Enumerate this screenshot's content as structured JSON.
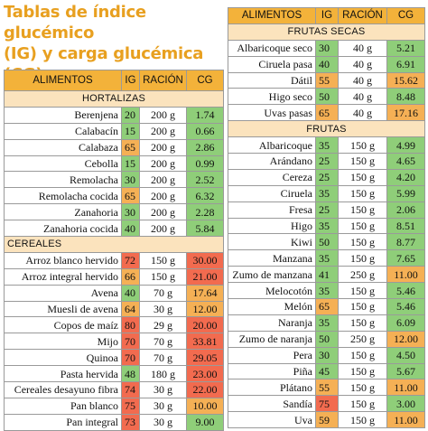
{
  "title_line1": "Tablas de índice glucémico",
  "title_line2": "(IG) y carga glucémica (CG)",
  "headers": {
    "food": "ALIMENTOS",
    "ig": "IG",
    "portion": "RACIÓN",
    "cg": "CG"
  },
  "colors": {
    "header": "#f3b23a",
    "section": "#fbe3bd",
    "low": "#8fce79",
    "medium": "#f5b055",
    "high": "#f26b4f"
  },
  "left_sections": [
    {
      "name": "HORTALIZAS",
      "rows": [
        {
          "food": "Berenjena",
          "ig": "20",
          "portion": "200 g",
          "cg": "1.74",
          "ig_level": "green",
          "cg_level": "green"
        },
        {
          "food": "Calabacín",
          "ig": "15",
          "portion": "200 g",
          "cg": "0.66",
          "ig_level": "green",
          "cg_level": "green"
        },
        {
          "food": "Calabaza",
          "ig": "65",
          "portion": "200 g",
          "cg": "2.86",
          "ig_level": "orange",
          "cg_level": "green"
        },
        {
          "food": "Cebolla",
          "ig": "15",
          "portion": "200 g",
          "cg": "0.99",
          "ig_level": "green",
          "cg_level": "green"
        },
        {
          "food": "Remolacha",
          "ig": "30",
          "portion": "200 g",
          "cg": "2.52",
          "ig_level": "green",
          "cg_level": "green"
        },
        {
          "food": "Remolacha cocida",
          "ig": "65",
          "portion": "200 g",
          "cg": "6.32",
          "ig_level": "orange",
          "cg_level": "green"
        },
        {
          "food": "Zanahoria",
          "ig": "30",
          "portion": "200 g",
          "cg": "2.28",
          "ig_level": "green",
          "cg_level": "green"
        },
        {
          "food": "Zanahoria cocida",
          "ig": "40",
          "portion": "200 g",
          "cg": "5.84",
          "ig_level": "green",
          "cg_level": "green"
        }
      ]
    },
    {
      "name": "CEREALES",
      "rows": [
        {
          "food": "Arroz blanco hervido",
          "ig": "72",
          "portion": "150 g",
          "cg": "30.00",
          "ig_level": "red",
          "cg_level": "red"
        },
        {
          "food": "Arroz integral hervido",
          "ig": "66",
          "portion": "150 g",
          "cg": "21.00",
          "ig_level": "orange",
          "cg_level": "red"
        },
        {
          "food": "Avena",
          "ig": "40",
          "portion": "70 g",
          "cg": "17.64",
          "ig_level": "green",
          "cg_level": "orange"
        },
        {
          "food": "Muesli de avena",
          "ig": "64",
          "portion": "30 g",
          "cg": "12.00",
          "ig_level": "orange",
          "cg_level": "orange"
        },
        {
          "food": "Copos de maíz",
          "ig": "80",
          "portion": "29 g",
          "cg": "20.00",
          "ig_level": "red",
          "cg_level": "red"
        },
        {
          "food": "Mijo",
          "ig": "70",
          "portion": "70 g",
          "cg": "33.81",
          "ig_level": "red",
          "cg_level": "red"
        },
        {
          "food": "Quinoa",
          "ig": "70",
          "portion": "70 g",
          "cg": "29.05",
          "ig_level": "red",
          "cg_level": "red"
        },
        {
          "food": "Pasta hervida",
          "ig": "48",
          "portion": "180 g",
          "cg": "23.00",
          "ig_level": "green",
          "cg_level": "red"
        },
        {
          "food": "Cereales desayuno fibra",
          "ig": "74",
          "portion": "30 g",
          "cg": "22.00",
          "ig_level": "red",
          "cg_level": "red"
        },
        {
          "food": "Pan blanco",
          "ig": "75",
          "portion": "30 g",
          "cg": "10.00",
          "ig_level": "red",
          "cg_level": "orange"
        },
        {
          "food": "Pan integral",
          "ig": "73",
          "portion": "30 g",
          "cg": "9.00",
          "ig_level": "red",
          "cg_level": "green"
        }
      ]
    }
  ],
  "right_sections": [
    {
      "name": "FRUTAS SECAS",
      "rows": [
        {
          "food": "Albaricoque seco",
          "ig": "30",
          "portion": "40 g",
          "cg": "5.21",
          "ig_level": "green",
          "cg_level": "green"
        },
        {
          "food": "Ciruela pasa",
          "ig": "40",
          "portion": "40 g",
          "cg": "6.91",
          "ig_level": "green",
          "cg_level": "green"
        },
        {
          "food": "Dátil",
          "ig": "55",
          "portion": "40 g",
          "cg": "15.62",
          "ig_level": "orange",
          "cg_level": "orange"
        },
        {
          "food": "Higo seco",
          "ig": "50",
          "portion": "40 g",
          "cg": "8.48",
          "ig_level": "green",
          "cg_level": "green"
        },
        {
          "food": "Uvas pasas",
          "ig": "65",
          "portion": "40 g",
          "cg": "17.16",
          "ig_level": "orange",
          "cg_level": "orange"
        }
      ]
    },
    {
      "name": "FRUTAS",
      "rows": [
        {
          "food": "Albaricoque",
          "ig": "35",
          "portion": "150 g",
          "cg": "4.99",
          "ig_level": "green",
          "cg_level": "green"
        },
        {
          "food": "Arándano",
          "ig": "25",
          "portion": "150 g",
          "cg": "4.65",
          "ig_level": "green",
          "cg_level": "green"
        },
        {
          "food": "Cereza",
          "ig": "25",
          "portion": "150 g",
          "cg": "4.20",
          "ig_level": "green",
          "cg_level": "green"
        },
        {
          "food": "Ciruela",
          "ig": "35",
          "portion": "150 g",
          "cg": "5.99",
          "ig_level": "green",
          "cg_level": "green"
        },
        {
          "food": "Fresa",
          "ig": "25",
          "portion": "150 g",
          "cg": "2.06",
          "ig_level": "green",
          "cg_level": "green"
        },
        {
          "food": "Higo",
          "ig": "35",
          "portion": "150 g",
          "cg": "8.51",
          "ig_level": "green",
          "cg_level": "green"
        },
        {
          "food": "Kiwi",
          "ig": "50",
          "portion": "150 g",
          "cg": "8.77",
          "ig_level": "green",
          "cg_level": "green"
        },
        {
          "food": "Manzana",
          "ig": "35",
          "portion": "150 g",
          "cg": "7.65",
          "ig_level": "green",
          "cg_level": "green"
        },
        {
          "food": "Zumo de manzana",
          "ig": "41",
          "portion": "250 g",
          "cg": "11.00",
          "ig_level": "green",
          "cg_level": "orange"
        },
        {
          "food": "Melocotón",
          "ig": "35",
          "portion": "150 g",
          "cg": "5.46",
          "ig_level": "green",
          "cg_level": "green"
        },
        {
          "food": "Melón",
          "ig": "65",
          "portion": "150 g",
          "cg": "5.46",
          "ig_level": "orange",
          "cg_level": "green"
        },
        {
          "food": "Naranja",
          "ig": "35",
          "portion": "150 g",
          "cg": "6.09",
          "ig_level": "green",
          "cg_level": "green"
        },
        {
          "food": "Zumo de naranja",
          "ig": "50",
          "portion": "250 g",
          "cg": "12.00",
          "ig_level": "green",
          "cg_level": "orange"
        },
        {
          "food": "Pera",
          "ig": "30",
          "portion": "150 g",
          "cg": "4.50",
          "ig_level": "green",
          "cg_level": "green"
        },
        {
          "food": "Piña",
          "ig": "45",
          "portion": "150 g",
          "cg": "5.67",
          "ig_level": "green",
          "cg_level": "green"
        },
        {
          "food": "Plátano",
          "ig": "55",
          "portion": "150 g",
          "cg": "11.00",
          "ig_level": "orange",
          "cg_level": "orange"
        },
        {
          "food": "Sandía",
          "ig": "75",
          "portion": "150 g",
          "cg": "3.00",
          "ig_level": "red",
          "cg_level": "green"
        },
        {
          "food": "Uva",
          "ig": "59",
          "portion": "150 g",
          "cg": "11.00",
          "ig_level": "orange",
          "cg_level": "orange"
        }
      ]
    }
  ]
}
